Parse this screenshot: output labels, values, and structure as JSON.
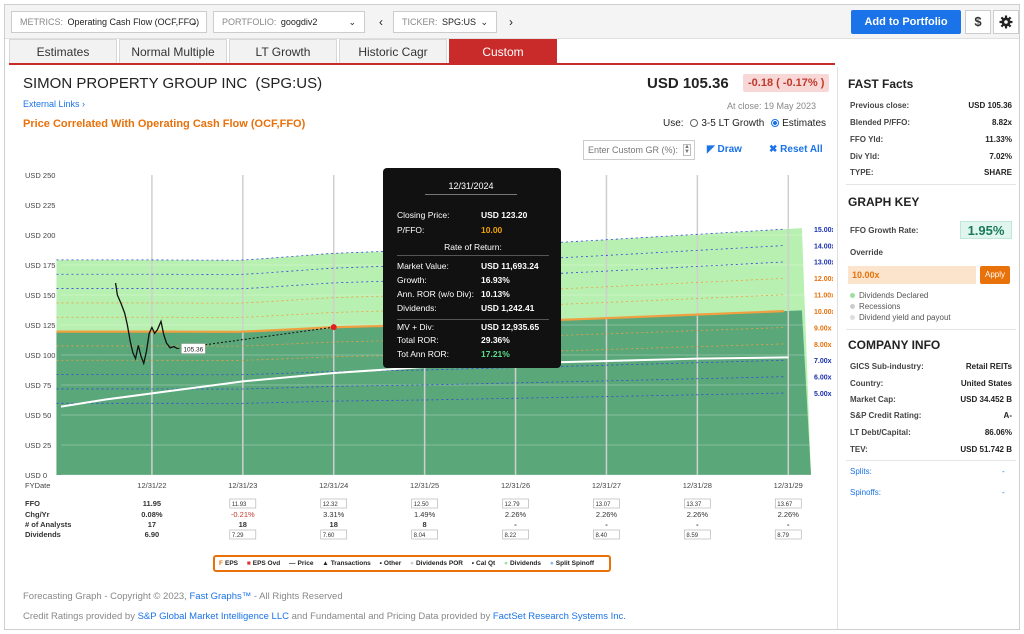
{
  "topbar": {
    "metrics_label": "METRICS:",
    "metrics_value": "Operating Cash Flow (OCF,FFO)",
    "portfolio_label": "PORTFOLIO:",
    "portfolio_value": "googdiv2",
    "ticker_label": "TICKER:",
    "ticker_value": "SPG:US",
    "add_button": "Add to Portfolio",
    "dollar_icon": "$"
  },
  "tabs": [
    "Estimates",
    "Normal Multiple",
    "LT Growth",
    "Historic Cagr",
    "Custom"
  ],
  "active_tab": "Custom",
  "header": {
    "company": "SIMON PROPERTY GROUP INC",
    "ticker": "(SPG:US)",
    "external_links": "External Links",
    "price": "USD 105.36",
    "change": "-0.18 ( -0.17% )",
    "at_close": "At close: 19 May 2023",
    "subtitle": "Price Correlated With Operating Cash Flow (OCF,FFO)",
    "use_label": "Use:",
    "option_lt": "3-5 LT Growth",
    "option_est": "Estimates",
    "custom_gr_placeholder": "Enter Custom GR (%):",
    "draw_label": "Draw",
    "reset_label": "Reset All"
  },
  "chart_data": {
    "type": "area",
    "ylim": [
      0,
      250
    ],
    "y_ticks": [
      "USD 0",
      "USD 25",
      "USD 50",
      "USD 75",
      "USD 100",
      "USD 125",
      "USD 150",
      "USD 175",
      "USD 200",
      "USD 225",
      "USD 250"
    ],
    "x_ticks": [
      "12/31/22",
      "12/31/23",
      "12/31/24",
      "12/31/25",
      "12/31/26",
      "12/31/27",
      "12/31/28",
      "12/31/29"
    ],
    "x_axis_label": "FYDate",
    "multiples": [
      "15.00x",
      "14.00x",
      "13.00x",
      "12.00x",
      "11.00x",
      "10.00x",
      "9.00x",
      "8.00x",
      "7.00x",
      "6.00x",
      "5.00x"
    ],
    "multiple_values": [
      15,
      14,
      13,
      12,
      11,
      10,
      9,
      8,
      7,
      6,
      5
    ],
    "ffo": [
      11.95,
      11.93,
      12.32,
      12.5,
      12.79,
      13.07,
      13.37,
      13.67
    ],
    "price_series": [
      [
        -0.4,
        160
      ],
      [
        -0.38,
        150
      ],
      [
        -0.34,
        143
      ],
      [
        -0.3,
        135
      ],
      [
        -0.27,
        125
      ],
      [
        -0.24,
        112
      ],
      [
        -0.21,
        102
      ],
      [
        -0.18,
        97
      ],
      [
        -0.15,
        108
      ],
      [
        -0.12,
        99
      ],
      [
        -0.09,
        93
      ],
      [
        -0.06,
        103
      ],
      [
        -0.03,
        118
      ],
      [
        0,
        123
      ],
      [
        0.03,
        118
      ],
      [
        0.06,
        121
      ],
      [
        0.1,
        128
      ],
      [
        0.13,
        117
      ],
      [
        0.16,
        110
      ],
      [
        0.2,
        106
      ],
      [
        0.24,
        107
      ],
      [
        0.28,
        105.36
      ]
    ],
    "last_price_label": "105.36",
    "white_curve": [
      [
        -1,
        57
      ],
      [
        -0.5,
        63
      ],
      [
        0,
        68
      ],
      [
        1,
        78
      ],
      [
        2,
        85
      ],
      [
        3,
        90
      ],
      [
        4,
        93
      ],
      [
        5,
        95
      ],
      [
        6,
        97
      ],
      [
        7,
        98
      ]
    ],
    "highlight_point": [
      2,
      123.2
    ]
  },
  "table": {
    "rows": [
      {
        "label": "FFO",
        "values": [
          "11.95",
          "11.93",
          "12.32",
          "12.50",
          "12.79",
          "13.07",
          "13.37",
          "13.67"
        ]
      },
      {
        "label": "Chg/Yr",
        "values": [
          "0.08%",
          "-0.21%",
          "3.31%",
          "1.49%",
          "2.26%",
          "2.26%",
          "2.26%",
          "2.26%"
        ]
      },
      {
        "label": "# of Analysts",
        "values": [
          "17",
          "18",
          "18",
          "8",
          "-",
          "-",
          "-",
          "-"
        ]
      },
      {
        "label": "Dividends",
        "values": [
          "6.90",
          "7.29",
          "7.60",
          "8.04",
          "8.22",
          "8.40",
          "8.59",
          "8.79"
        ]
      }
    ]
  },
  "tooltip": {
    "date": "12/31/2024",
    "closing_label": "Closing Price:",
    "closing_value": "USD 123.20",
    "pffo_label": "P/FFO:",
    "pffo_value": "10.00",
    "ror_heading": "Rate of Return:",
    "mv_label": "Market Value:",
    "mv_value": "USD 11,693.24",
    "growth_label": "Growth:",
    "growth_value": "16.93%",
    "annror_label": "Ann. ROR (w/o Div):",
    "annror_value": "10.13%",
    "div_label": "Dividends:",
    "div_value": "USD 1,242.41",
    "mvdiv_label": "MV + Div:",
    "mvdiv_value": "USD 12,935.65",
    "totror_label": "Total ROR:",
    "totror_value": "29.36%",
    "totann_label": "Tot Ann ROR:",
    "totann_value": "17.21%"
  },
  "legend": [
    "EPS",
    "EPS Ovd",
    "Price",
    "Transactions",
    "Other",
    "Dividends POR",
    "Cal Qt",
    "Dividends",
    "Split Spinoff"
  ],
  "footer": {
    "line1_a": "Forecasting Graph - Copyright © 2023,",
    "line1_link": "Fast Graphs™",
    "line1_b": "- All Rights Reserved",
    "line2_a": "Credit Ratings provided by",
    "line2_link1": "S&P Global Market Intelligence LLC",
    "line2_b": "and Fundamental and Pricing Data provided by",
    "line2_link2": "FactSet Research Systems Inc."
  },
  "sidebar": {
    "fast_facts_title": "FAST Facts",
    "facts": [
      {
        "label": "Previous close:",
        "value": "USD 105.36"
      },
      {
        "label": "Blended P/FFO:",
        "value": "8.82x"
      },
      {
        "label": "FFO Yld:",
        "value": "11.33%"
      },
      {
        "label": "Div Yld:",
        "value": "7.02%"
      },
      {
        "label": "TYPE:",
        "value": "SHARE"
      }
    ],
    "graph_key_title": "GRAPH KEY",
    "ffo_growth_label": "FFO Growth Rate:",
    "ffo_growth_value": "1.95%",
    "override_label": "Override",
    "override_value": "10.00x",
    "apply_label": "Apply",
    "key_items": [
      "Dividends Declared",
      "Recessions",
      "Dividend yield and payout"
    ],
    "company_info_title": "COMPANY INFO",
    "info": [
      {
        "label": "GICS Sub-industry:",
        "value": "Retail REITs"
      },
      {
        "label": "Country:",
        "value": "United States"
      },
      {
        "label": "Market Cap:",
        "value": "USD 34.452 B"
      },
      {
        "label": "S&P Credit Rating:",
        "value": "A-"
      },
      {
        "label": "LT Debt/Capital:",
        "value": "86.06%"
      },
      {
        "label": "TEV:",
        "value": "USD 51.742 B"
      }
    ],
    "splits_label": "Splits:",
    "spinoffs_label": "Spinoffs:",
    "splits_value": "-",
    "spinoffs_value": "-"
  },
  "colors": {
    "accent": "#c92a2a",
    "orange": "#e8710a",
    "blue": "#1a73e8",
    "green_area": "#5aa77a",
    "light_green": "#b7f0b0"
  }
}
